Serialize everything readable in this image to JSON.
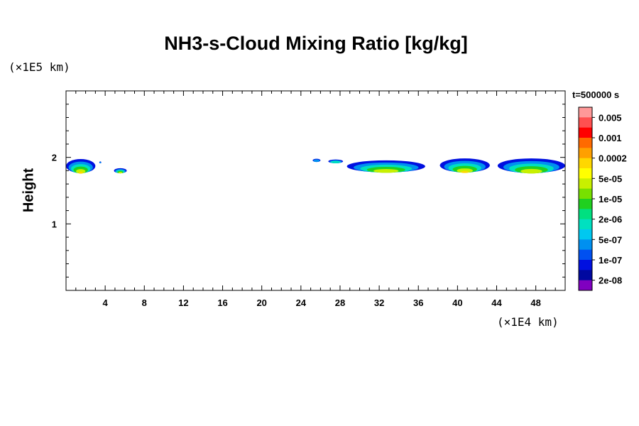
{
  "chart_data": {
    "type": "heatmap",
    "title": "NH3-s-Cloud Mixing Ratio [kg/kg]",
    "ylabel": "Height",
    "xlabel": "",
    "x_scale_label": "(×1E4 km)",
    "y_scale_label": "(×1E5 km)",
    "time_label": "t=500000 s",
    "xlim": [
      0,
      51
    ],
    "ylim": [
      0,
      3
    ],
    "x_ticks": [
      4,
      8,
      12,
      16,
      20,
      24,
      28,
      32,
      36,
      40,
      44,
      48
    ],
    "y_ticks": [
      1,
      2
    ],
    "colorbar": {
      "labels": [
        "0.005",
        "0.001",
        "0.0002",
        "5e-05",
        "1e-05",
        "2e-06",
        "5e-07",
        "1e-07",
        "2e-08"
      ],
      "colors": [
        "#ff9999",
        "#ff5050",
        "#ff0000",
        "#ff6a00",
        "#ffa000",
        "#ffd700",
        "#ffff00",
        "#c8f000",
        "#78e000",
        "#20d020",
        "#00e080",
        "#00e0c0",
        "#00c8f0",
        "#0090f0",
        "#0050f0",
        "#0010e0",
        "#0008a0",
        "#8000c0"
      ]
    },
    "cloud_patches": [
      {
        "x": [
          0.0,
          3.0
        ],
        "y": [
          1.76,
          1.98
        ],
        "max": "5e-05"
      },
      {
        "x": [
          3.4,
          3.6
        ],
        "y": [
          1.91,
          1.94
        ],
        "max": "1e-07"
      },
      {
        "x": [
          4.9,
          6.2
        ],
        "y": [
          1.76,
          1.84
        ],
        "max": "1e-05"
      },
      {
        "x": [
          25.2,
          26.0
        ],
        "y": [
          1.93,
          1.98
        ],
        "max": "1e-07"
      },
      {
        "x": [
          26.8,
          28.3
        ],
        "y": [
          1.91,
          1.97
        ],
        "max": "5e-07"
      },
      {
        "x": [
          28.7,
          36.7
        ],
        "y": [
          1.77,
          1.96
        ],
        "max": "1e-05"
      },
      {
        "x": [
          38.2,
          43.3
        ],
        "y": [
          1.77,
          1.99
        ],
        "max": "5e-05"
      },
      {
        "x": [
          44.1,
          51.0
        ],
        "y": [
          1.76,
          1.99
        ],
        "max": "1e-05"
      }
    ]
  }
}
